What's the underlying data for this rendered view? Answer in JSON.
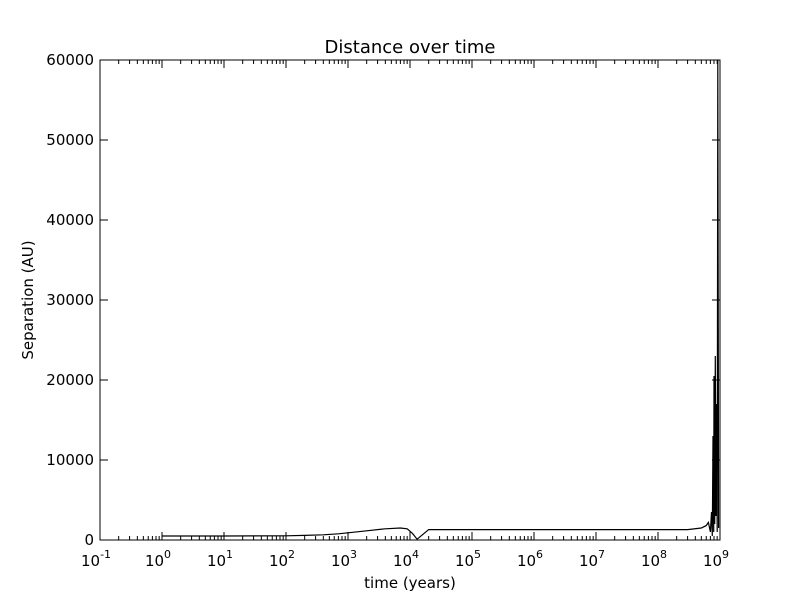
{
  "chart_data": {
    "type": "line",
    "title": "Distance over time",
    "xlabel": "time (years)",
    "ylabel": "Separation (AU)",
    "x_scale": "log",
    "xlim": [
      0.1,
      1000000000
    ],
    "ylim": [
      0,
      60000
    ],
    "grid": false,
    "legend": "none",
    "x_ticks": [
      {
        "value": 0.1,
        "base": "10",
        "exp": "-1"
      },
      {
        "value": 1,
        "base": "10",
        "exp": "0"
      },
      {
        "value": 10,
        "base": "10",
        "exp": "1"
      },
      {
        "value": 100,
        "base": "10",
        "exp": "2"
      },
      {
        "value": 1000,
        "base": "10",
        "exp": "3"
      },
      {
        "value": 10000,
        "base": "10",
        "exp": "4"
      },
      {
        "value": 100000,
        "base": "10",
        "exp": "5"
      },
      {
        "value": 1000000,
        "base": "10",
        "exp": "6"
      },
      {
        "value": 10000000,
        "base": "10",
        "exp": "7"
      },
      {
        "value": 100000000,
        "base": "10",
        "exp": "8"
      },
      {
        "value": 1000000000,
        "base": "10",
        "exp": "9"
      }
    ],
    "y_ticks": [
      {
        "value": 0,
        "label": "0"
      },
      {
        "value": 10000,
        "label": "10000"
      },
      {
        "value": 20000,
        "label": "20000"
      },
      {
        "value": 30000,
        "label": "30000"
      },
      {
        "value": 40000,
        "label": "40000"
      },
      {
        "value": 50000,
        "label": "50000"
      },
      {
        "value": 60000,
        "label": "60000"
      }
    ],
    "series": [
      {
        "color": "#000000",
        "x": [
          1,
          3,
          10,
          30,
          100,
          200,
          400,
          700,
          1000,
          2000,
          4000,
          7000,
          9000,
          11000,
          13000,
          20000,
          40000,
          70000,
          100000,
          300000,
          1000000,
          3000000,
          10000000,
          30000000,
          100000000,
          300000000,
          500000000,
          600000000,
          650000000,
          700000000,
          730000000,
          750000000,
          770000000,
          790000000,
          800000000,
          820000000,
          840000000,
          860000000,
          880000000,
          900000000,
          920000000,
          950000000
        ],
        "y": [
          500,
          500,
          500,
          510,
          530,
          580,
          650,
          780,
          900,
          1150,
          1400,
          1500,
          1400,
          800,
          100,
          1300,
          1300,
          1300,
          1300,
          1300,
          1300,
          1300,
          1300,
          1300,
          1300,
          1300,
          1500,
          1800,
          2200,
          1000,
          3500,
          500,
          13000,
          1000,
          20500,
          2000,
          23000,
          3000,
          17000,
          1000,
          60000,
          1500
        ]
      }
    ]
  }
}
